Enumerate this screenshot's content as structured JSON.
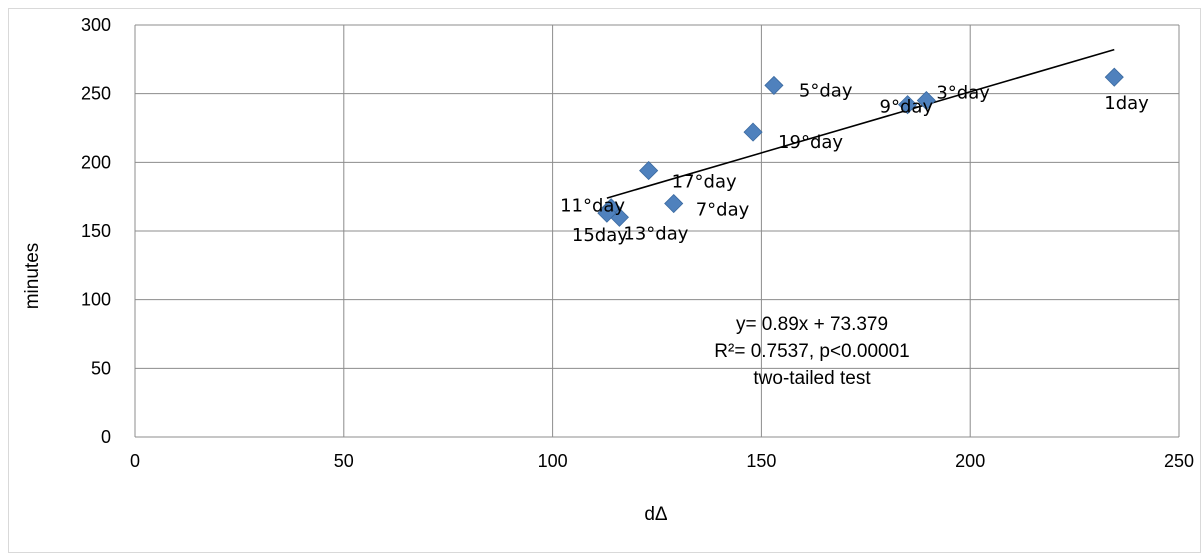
{
  "chart_data": {
    "type": "scatter",
    "title": "",
    "xlabel": "dΔ",
    "ylabel": "minutes",
    "xlim": [
      0,
      250
    ],
    "ylim": [
      0,
      300
    ],
    "x_ticks": [
      "0",
      "50",
      "100",
      "150",
      "200",
      "250"
    ],
    "y_ticks": [
      "0",
      "50",
      "100",
      "150",
      "200",
      "250",
      "300"
    ],
    "grid": true,
    "legend": "none",
    "marker": "diamond",
    "series_color": "#4F81BD",
    "points": [
      {
        "label": "1day",
        "x": 234.5,
        "y": 262
      },
      {
        "label": "3°day",
        "x": 189.5,
        "y": 245
      },
      {
        "label": "9°day",
        "x": 185,
        "y": 242
      },
      {
        "label": "5°day",
        "x": 153,
        "y": 256
      },
      {
        "label": "19°day",
        "x": 148,
        "y": 222
      },
      {
        "label": "17°day",
        "x": 123,
        "y": 194
      },
      {
        "label": "7°day",
        "x": 129,
        "y": 170
      },
      {
        "label": "11°day",
        "x": 114,
        "y": 167
      },
      {
        "label": "13°day",
        "x": 116,
        "y": 160
      },
      {
        "label": "15day",
        "x": 113,
        "y": 163
      }
    ],
    "trendline": {
      "slope": 0.89,
      "intercept": 73.379,
      "x_range": [
        113,
        234.5
      ]
    },
    "annotation": [
      "y= 0.89x + 73.379",
      "R²= 0.7537, p<0.00001",
      "two-tailed test"
    ]
  }
}
